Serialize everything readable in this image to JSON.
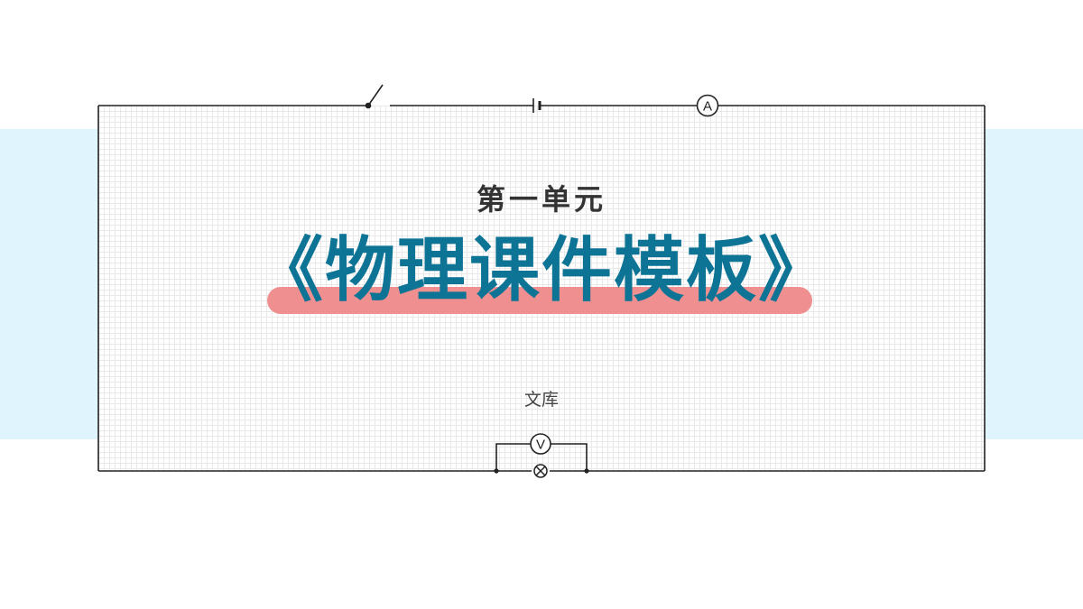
{
  "slide": {
    "unit_label": "第一单元",
    "title": "《物理课件模板》",
    "author": "文库"
  },
  "circuit": {
    "ammeter_symbol": "A",
    "voltmeter_symbol": "V"
  },
  "colors": {
    "title": "#0e7495",
    "highlight": "#ef8f8f",
    "band": "#dff4fd",
    "wire": "#222222"
  }
}
